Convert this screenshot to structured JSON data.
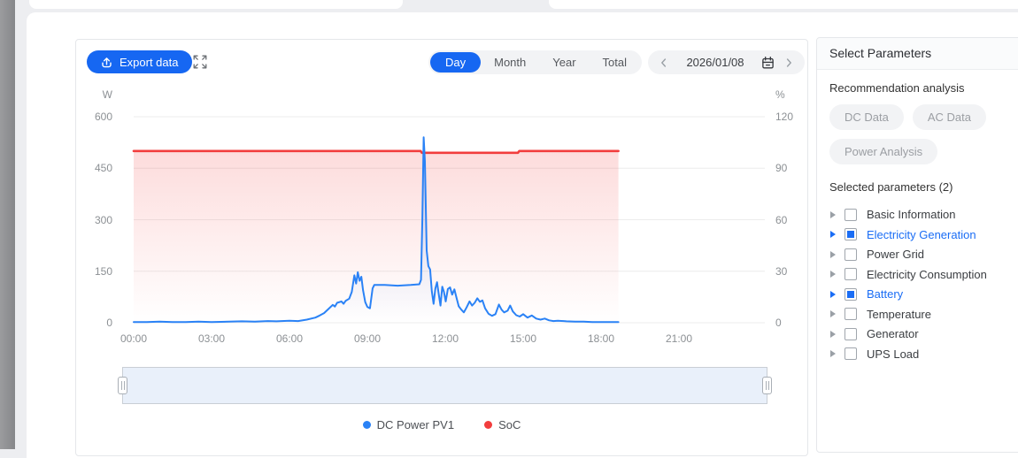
{
  "toolbar": {
    "export_label": "Export data",
    "tabs": [
      "Day",
      "Month",
      "Year",
      "Total"
    ],
    "active_tab": "Day",
    "date": "2026/01/08"
  },
  "panel": {
    "title": "Select Parameters",
    "recommendation_label": "Recommendation analysis",
    "recommendation_buttons": [
      "DC Data",
      "AC Data",
      "Power Analysis"
    ],
    "selected_label": "Selected parameters (2)",
    "tree": [
      {
        "label": "Basic Information",
        "checked": false
      },
      {
        "label": "Electricity Generation",
        "checked": true
      },
      {
        "label": "Power Grid",
        "checked": false
      },
      {
        "label": "Electricity Consumption",
        "checked": false
      },
      {
        "label": "Battery",
        "checked": true
      },
      {
        "label": "Temperature",
        "checked": false
      },
      {
        "label": "Generator",
        "checked": false
      },
      {
        "label": "UPS Load",
        "checked": false
      }
    ]
  },
  "colors": {
    "accent": "#1667f2",
    "line_blue": "#2a82f6",
    "line_red": "#f23d3d",
    "checked_blue": "#1a6df5",
    "axis_text": "#8c9094"
  },
  "icons": {
    "export": "upload-icon",
    "fullscreen": "fullscreen-icon",
    "date_prev": "chevron-left-icon",
    "date_next": "chevron-right-icon",
    "date": "calendar-icon",
    "tree_expand": "caret-right-icon"
  },
  "chart_data": {
    "type": "line",
    "title": "",
    "x_axis": {
      "tick_labels": [
        "00:00",
        "03:00",
        "06:00",
        "09:00",
        "12:00",
        "15:00",
        "18:00",
        "21:00"
      ],
      "range": [
        "00:00",
        "24:00"
      ]
    },
    "y_left": {
      "unit": "W",
      "ticks": [
        600,
        450,
        300,
        150,
        0
      ],
      "range": [
        0,
        600
      ]
    },
    "y_right": {
      "unit": "%",
      "ticks": [
        120,
        90,
        60,
        30,
        0
      ],
      "range": [
        0,
        120
      ]
    },
    "grid": true,
    "legend_position": "bottom",
    "series": [
      {
        "name": "DC Power PV1",
        "axis": "left",
        "unit": "W",
        "color": "#2a82f6",
        "area": true,
        "points": [
          [
            "00:00",
            2
          ],
          [
            "00:30",
            2
          ],
          [
            "01:00",
            3
          ],
          [
            "01:30",
            2
          ],
          [
            "02:00",
            2
          ],
          [
            "02:30",
            3
          ],
          [
            "03:00",
            2
          ],
          [
            "03:40",
            3
          ],
          [
            "04:10",
            4
          ],
          [
            "04:40",
            3
          ],
          [
            "05:10",
            5
          ],
          [
            "05:30",
            4
          ],
          [
            "06:00",
            6
          ],
          [
            "06:20",
            5
          ],
          [
            "06:40",
            9
          ],
          [
            "07:00",
            15
          ],
          [
            "07:10",
            21
          ],
          [
            "07:20",
            28
          ],
          [
            "07:30",
            40
          ],
          [
            "07:40",
            52
          ],
          [
            "07:45",
            47
          ],
          [
            "07:50",
            58
          ],
          [
            "08:00",
            62
          ],
          [
            "08:05",
            55
          ],
          [
            "08:10",
            64
          ],
          [
            "08:18",
            70
          ],
          [
            "08:24",
            90
          ],
          [
            "08:30",
            138
          ],
          [
            "08:34",
            114
          ],
          [
            "08:38",
            147
          ],
          [
            "08:42",
            122
          ],
          [
            "08:46",
            134
          ],
          [
            "08:50",
            95
          ],
          [
            "08:55",
            60
          ],
          [
            "09:00",
            46
          ],
          [
            "09:06",
            42
          ],
          [
            "09:12",
            100
          ],
          [
            "09:16",
            110
          ],
          [
            "09:40",
            110
          ],
          [
            "10:10",
            108
          ],
          [
            "10:40",
            110
          ],
          [
            "11:00",
            112
          ],
          [
            "11:04",
            125
          ],
          [
            "11:07",
            300
          ],
          [
            "11:10",
            540
          ],
          [
            "11:13",
            470
          ],
          [
            "11:17",
            210
          ],
          [
            "11:21",
            165
          ],
          [
            "11:25",
            155
          ],
          [
            "11:29",
            92
          ],
          [
            "11:33",
            55
          ],
          [
            "11:37",
            100
          ],
          [
            "11:41",
            118
          ],
          [
            "11:45",
            82
          ],
          [
            "11:49",
            50
          ],
          [
            "11:53",
            105
          ],
          [
            "11:57",
            90
          ],
          [
            "12:01",
            62
          ],
          [
            "12:06",
            98
          ],
          [
            "12:11",
            103
          ],
          [
            "12:16",
            82
          ],
          [
            "12:21",
            97
          ],
          [
            "12:26",
            73
          ],
          [
            "12:31",
            48
          ],
          [
            "12:37",
            38
          ],
          [
            "12:43",
            30
          ],
          [
            "12:50",
            46
          ],
          [
            "12:56",
            62
          ],
          [
            "13:02",
            50
          ],
          [
            "13:08",
            58
          ],
          [
            "13:14",
            71
          ],
          [
            "13:20",
            61
          ],
          [
            "13:26",
            65
          ],
          [
            "13:32",
            42
          ],
          [
            "13:40",
            26
          ],
          [
            "13:48",
            20
          ],
          [
            "13:56",
            25
          ],
          [
            "14:04",
            53
          ],
          [
            "14:10",
            38
          ],
          [
            "14:16",
            30
          ],
          [
            "14:24",
            35
          ],
          [
            "14:30",
            50
          ],
          [
            "14:36",
            33
          ],
          [
            "14:44",
            22
          ],
          [
            "14:52",
            18
          ],
          [
            "15:00",
            25
          ],
          [
            "15:10",
            15
          ],
          [
            "15:20",
            21
          ],
          [
            "15:30",
            12
          ],
          [
            "15:40",
            9
          ],
          [
            "15:50",
            12
          ],
          [
            "16:00",
            7
          ],
          [
            "16:10",
            5
          ],
          [
            "16:20",
            6
          ],
          [
            "16:40",
            4
          ],
          [
            "17:00",
            3
          ],
          [
            "17:20",
            3
          ],
          [
            "17:40",
            2
          ],
          [
            "18:00",
            2
          ],
          [
            "18:20",
            2
          ],
          [
            "18:40",
            2
          ]
        ]
      },
      {
        "name": "SoC",
        "axis": "right",
        "unit": "%",
        "color": "#f23d3d",
        "area": true,
        "points": [
          [
            "00:00",
            100
          ],
          [
            "11:03",
            100
          ],
          [
            "11:06",
            99
          ],
          [
            "14:48",
            99
          ],
          [
            "14:51",
            100
          ],
          [
            "18:40",
            100
          ]
        ]
      }
    ]
  }
}
